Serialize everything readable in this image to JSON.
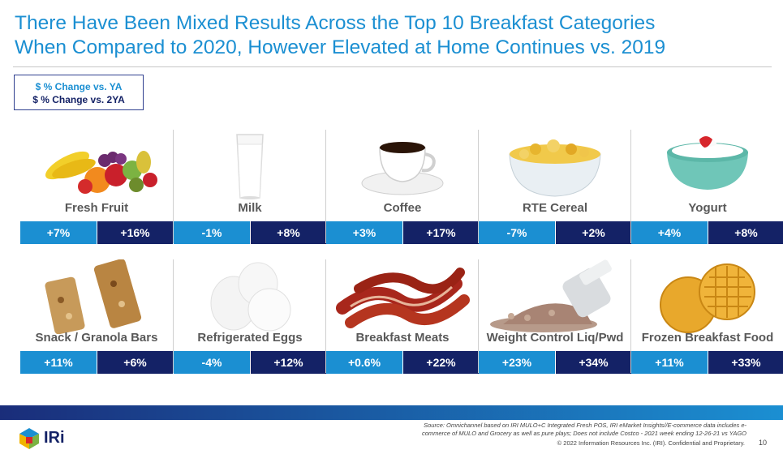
{
  "title_line1": "There Have Been Mixed Results Across the Top 10 Breakfast Categories",
  "title_line2": "When Compared to 2020, However Elevated at Home Continues vs. 2019",
  "legend": {
    "ya": "$ % Change vs. YA",
    "yb": "$ % Change vs. 2YA"
  },
  "categories": [
    {
      "name": "Fresh Fruit",
      "ya": "+7%",
      "yb": "+16%"
    },
    {
      "name": "Milk",
      "ya": "-1%",
      "yb": "+8%"
    },
    {
      "name": "Coffee",
      "ya": "+3%",
      "yb": "+17%"
    },
    {
      "name": "RTE Cereal",
      "ya": "-7%",
      "yb": "+2%"
    },
    {
      "name": "Yogurt",
      "ya": "+4%",
      "yb": "+8%"
    },
    {
      "name": "Snack / Granola Bars",
      "ya": "+11%",
      "yb": "+6%"
    },
    {
      "name": "Refrigerated Eggs",
      "ya": "-4%",
      "yb": "+12%"
    },
    {
      "name": "Breakfast Meats",
      "ya": "+0.6%",
      "yb": "+22%"
    },
    {
      "name": "Weight Control Liq/Pwd",
      "ya": "+23%",
      "yb": "+34%"
    },
    {
      "name": "Frozen Breakfast Food",
      "ya": "+11%",
      "yb": "+33%"
    }
  ],
  "footer": {
    "source_line1": "Source: Omnichannel based on IRI MULO+C Integrated Fresh POS, IRI eMarket Insights//E-commerce data includes e-",
    "source_line2": "commerce of MULO and Grocery as well as pure plays; Does not include Costco - 2021 week ending 12-26-21 vs YAGO",
    "copyright": "© 2022 Information Resources Inc. (IRI). Confidential and Proprietary.",
    "page": "10",
    "logo_text": "IRi"
  },
  "colors": {
    "ya": "#1b8fd2",
    "yb": "#142266",
    "title": "#1b8fd2"
  },
  "icons": [
    "fruit-basket-icon",
    "milk-glass-icon",
    "coffee-cup-icon",
    "cereal-bowl-icon",
    "yogurt-bowl-icon",
    "granola-bar-icon",
    "eggs-icon",
    "bacon-icon",
    "protein-powder-icon",
    "waffle-icon"
  ]
}
